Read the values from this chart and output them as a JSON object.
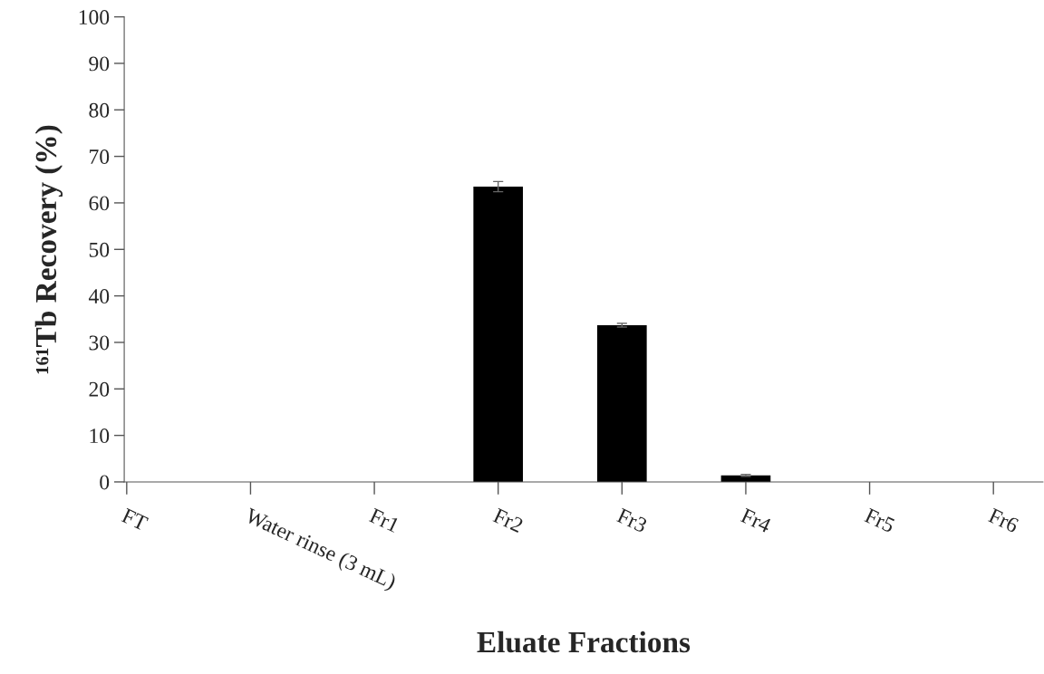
{
  "chart_data": {
    "type": "bar",
    "xlabel": "Eluate Fractions",
    "ylabel": "¹⁶¹Tb Recovery (%)",
    "categories": [
      "FT",
      "Water rinse (3 mL)",
      "Fr1",
      "Fr2",
      "Fr3",
      "Fr4",
      "Fr5",
      "Fr6"
    ],
    "values": [
      0,
      0,
      0,
      63.5,
      33.7,
      1.4,
      0,
      0
    ],
    "errors": [
      null,
      null,
      null,
      1.1,
      0.4,
      0.2,
      null,
      null
    ],
    "color": "#000000",
    "ylim": [
      0,
      100
    ],
    "yticks": [
      0,
      10,
      20,
      30,
      40,
      50,
      60,
      70,
      80,
      90,
      100
    ],
    "grid": false
  }
}
